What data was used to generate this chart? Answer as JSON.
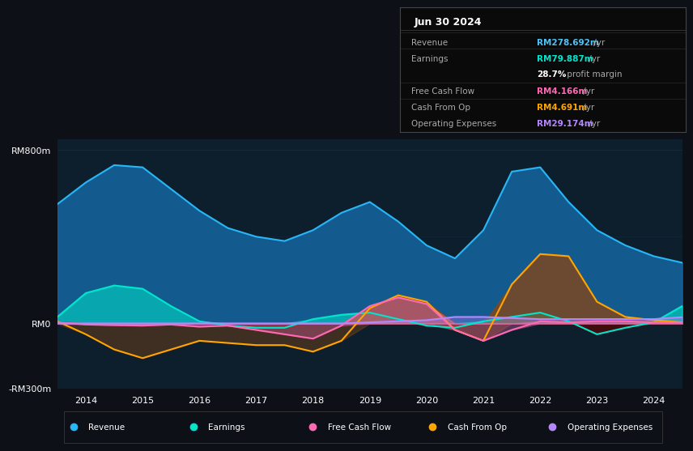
{
  "bg_color": "#0d1117",
  "plot_bg_color": "#0d1f2d",
  "grid_color": "#1e3a4a",
  "title_text": "Jun 30 2024",
  "years": [
    2013.5,
    2014.0,
    2014.5,
    2015.0,
    2015.5,
    2016.0,
    2016.5,
    2017.0,
    2017.5,
    2018.0,
    2018.5,
    2019.0,
    2019.5,
    2020.0,
    2020.5,
    2021.0,
    2021.5,
    2022.0,
    2022.5,
    2023.0,
    2023.5,
    2024.0,
    2024.5
  ],
  "revenue": [
    550,
    650,
    730,
    720,
    620,
    520,
    440,
    400,
    380,
    430,
    510,
    560,
    470,
    360,
    300,
    430,
    700,
    720,
    560,
    430,
    360,
    310,
    280
  ],
  "earnings": [
    30,
    140,
    175,
    160,
    80,
    10,
    -10,
    -20,
    -20,
    20,
    40,
    50,
    20,
    -10,
    -20,
    10,
    30,
    50,
    10,
    -50,
    -20,
    5,
    80
  ],
  "free_cash_flow": [
    5,
    -5,
    -8,
    -10,
    -5,
    -15,
    -10,
    -30,
    -50,
    -70,
    -10,
    80,
    120,
    90,
    -30,
    -80,
    -30,
    10,
    5,
    10,
    10,
    5,
    4
  ],
  "cash_from_op": [
    10,
    -50,
    -120,
    -160,
    -120,
    -80,
    -90,
    -100,
    -100,
    -130,
    -80,
    70,
    130,
    100,
    -30,
    -80,
    180,
    320,
    310,
    100,
    30,
    15,
    5
  ],
  "operating_expenses": [
    0,
    0,
    0,
    0,
    0,
    0,
    0,
    0,
    0,
    0,
    0,
    5,
    10,
    15,
    30,
    30,
    25,
    20,
    20,
    20,
    20,
    20,
    29
  ],
  "ylim": [
    -300,
    850
  ],
  "yticks": [
    -300,
    0,
    800
  ],
  "ytick_labels": [
    "-RM300m",
    "RM0",
    "RM800m"
  ],
  "xtick_years": [
    2014,
    2015,
    2016,
    2017,
    2018,
    2019,
    2020,
    2021,
    2022,
    2023,
    2024
  ],
  "revenue_color": "#29b6f6",
  "revenue_fill": "#1565a0",
  "earnings_color": "#00e5cc",
  "earnings_fill": "#00e5cc",
  "earnings_neg_fill": "#4a0a0a",
  "fcf_color": "#ff69b4",
  "cashop_color": "#ffa500",
  "cashop_fill": "#8b4513",
  "opex_color": "#b388ff",
  "legend_items": [
    {
      "label": "Revenue",
      "color": "#29b6f6"
    },
    {
      "label": "Earnings",
      "color": "#00e5cc"
    },
    {
      "label": "Free Cash Flow",
      "color": "#ff69b4"
    },
    {
      "label": "Cash From Op",
      "color": "#ffa500"
    },
    {
      "label": "Operating Expenses",
      "color": "#b388ff"
    }
  ],
  "info_rows": [
    {
      "label": "Revenue",
      "val": "RM278.692m",
      "suffix": " /yr",
      "val_color": "#4fc3f7"
    },
    {
      "label": "Earnings",
      "val": "RM79.887m",
      "suffix": " /yr",
      "val_color": "#00e5cc"
    },
    {
      "label": "",
      "val": "28.7%",
      "suffix": " profit margin",
      "val_color": "#ffffff"
    },
    {
      "label": "Free Cash Flow",
      "val": "RM4.166m",
      "suffix": " /yr",
      "val_color": "#ff69b4"
    },
    {
      "label": "Cash From Op",
      "val": "RM4.691m",
      "suffix": " /yr",
      "val_color": "#ffa500"
    },
    {
      "label": "Operating Expenses",
      "val": "RM29.174m",
      "suffix": " /yr",
      "val_color": "#b388ff"
    }
  ]
}
